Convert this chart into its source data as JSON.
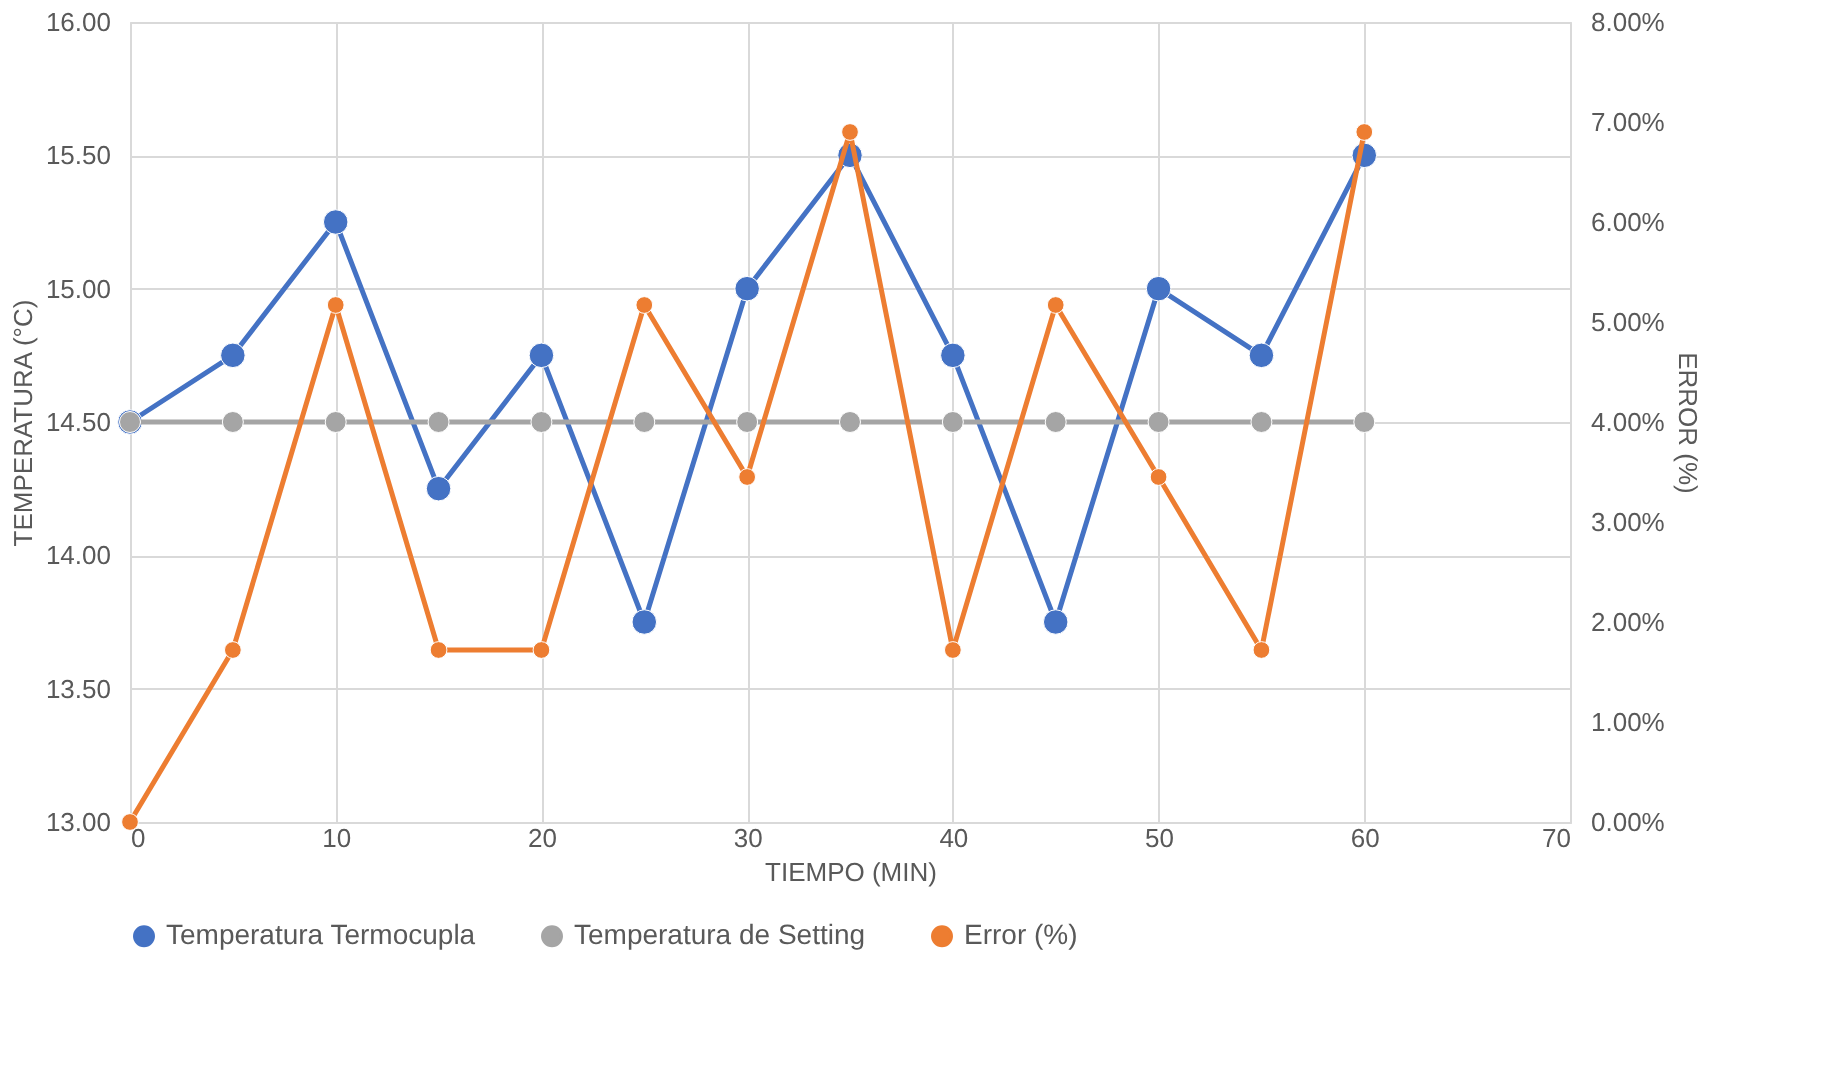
{
  "chart_data": {
    "type": "line",
    "xlabel": "TIEMPO (MIN)",
    "ylabel": "TEMPERATURA (°C)",
    "y2label": "ERROR (%)",
    "x": [
      0,
      5,
      10,
      15,
      20,
      25,
      30,
      35,
      40,
      45,
      50,
      55,
      60
    ],
    "xlim": [
      0,
      70
    ],
    "xticks": [
      0,
      10,
      20,
      30,
      40,
      50,
      60,
      70
    ],
    "ylim": [
      13,
      16
    ],
    "yticks": [
      {
        "value": 13,
        "label": "13.00"
      },
      {
        "value": 13.5,
        "label": "13.50"
      },
      {
        "value": 14,
        "label": "14.00"
      },
      {
        "value": 14.5,
        "label": "14.50"
      },
      {
        "value": 15,
        "label": "15.00"
      },
      {
        "value": 15.5,
        "label": "15.50"
      },
      {
        "value": 16,
        "label": "16.00"
      }
    ],
    "y2lim": [
      0,
      8
    ],
    "y2ticks": [
      {
        "value": 0,
        "label": "0.00%"
      },
      {
        "value": 1,
        "label": "1.00%"
      },
      {
        "value": 2,
        "label": "2.00%"
      },
      {
        "value": 3,
        "label": "3.00%"
      },
      {
        "value": 4,
        "label": "4.00%"
      },
      {
        "value": 5,
        "label": "5.00%"
      },
      {
        "value": 6,
        "label": "6.00%"
      },
      {
        "value": 7,
        "label": "7.00%"
      },
      {
        "value": 8,
        "label": "8.00%"
      }
    ],
    "series": [
      {
        "name": "Temperatura Termocupla",
        "color": "#4472c4",
        "values": [
          14.5,
          14.75,
          15.25,
          14.25,
          14.75,
          13.75,
          15.0,
          15.5,
          14.75,
          13.75,
          15.0,
          14.75,
          15.5
        ]
      },
      {
        "name": "Temperatura de Setting",
        "color": "#a5a5a5",
        "values": [
          14.5,
          14.5,
          14.5,
          14.5,
          14.5,
          14.5,
          14.5,
          14.5,
          14.5,
          14.5,
          14.5,
          14.5,
          14.5
        ]
      },
      {
        "name": "Error (%)",
        "color": "#ed7d31",
        "axis": "y2",
        "values": [
          0,
          1.72,
          5.17,
          1.72,
          1.72,
          5.17,
          3.45,
          6.9,
          1.72,
          5.17,
          3.45,
          1.72,
          6.9
        ]
      }
    ],
    "grid": true,
    "legend": "bottom",
    "marker": "circle",
    "line_style": "solid"
  }
}
